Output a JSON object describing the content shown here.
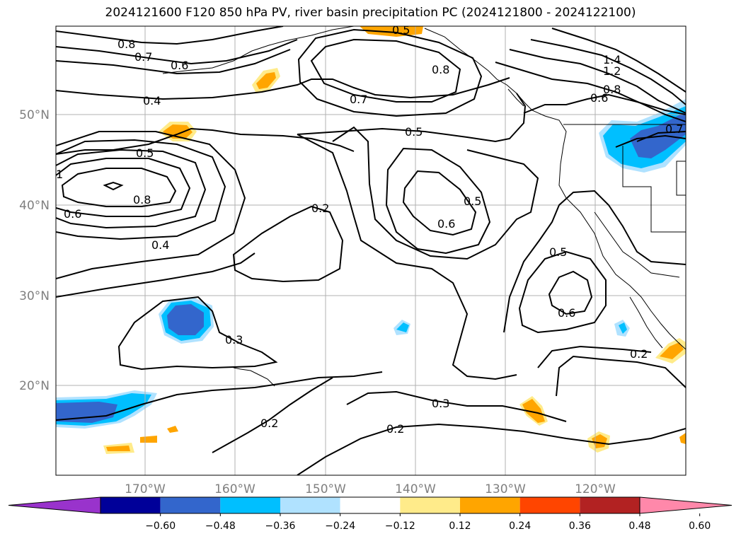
{
  "title": "2024121600 F120 850 hPa PV, river basin precipitation PC (2024121800 - 2024122100)",
  "lat_ticks": [
    "50°N",
    "40°N",
    "30°N",
    "20°N"
  ],
  "lon_ticks": [
    "170°W",
    "160°W",
    "150°W",
    "140°W",
    "130°W",
    "120°W"
  ],
  "colorbar": {
    "colors": [
      "#9933cc",
      "#000099",
      "#3366cc",
      "#00bfff",
      "#b0e2ff",
      "#ffffff",
      "#ffeb8a",
      "#ffa500",
      "#ff4500",
      "#b22222",
      "#ff88aa"
    ],
    "tick_labels": [
      "−0.60",
      "−0.48",
      "−0.36",
      "−0.24",
      "−0.12",
      "0.12",
      "0.24",
      "0.36",
      "0.48",
      "0.60"
    ]
  },
  "contour_labels": [
    "0.8",
    "0.7",
    "0.6",
    "0.4",
    "0.5",
    "0.7",
    "0.8",
    "0.5",
    "1.4",
    "1.2",
    "0.8",
    "0.6",
    "0.5",
    "0.8",
    "0.6",
    "0.2",
    "0.6",
    "0.5",
    "0.4",
    "0.5",
    "0.6",
    "0.3",
    "0.2",
    "0.3",
    "0.2",
    "0.2",
    "0.7",
    "1"
  ]
}
